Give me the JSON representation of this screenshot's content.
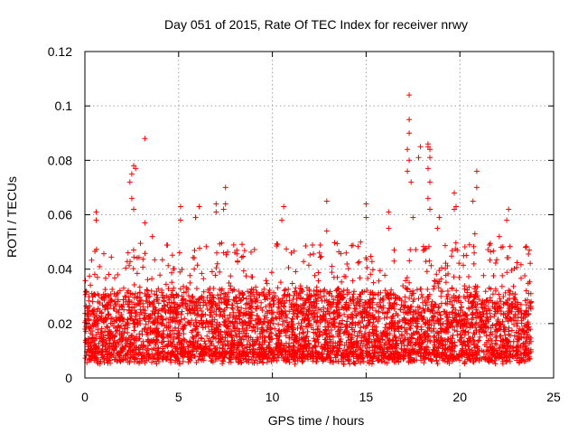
{
  "chart_data": {
    "type": "scatter",
    "title": "Day 051 of 2015, Rate Of TEC Index for receiver nrwy",
    "xlabel": "GPS time / hours",
    "ylabel": "ROTI / TECUs",
    "xlim": [
      0,
      25
    ],
    "ylim": [
      0,
      0.12
    ],
    "xticks": [
      "0",
      "5",
      "10",
      "15",
      "20",
      "25"
    ],
    "yticks": [
      "0",
      "0.02",
      "0.04",
      "0.06",
      "0.08",
      "0.1",
      "0.12"
    ],
    "grid": true,
    "marker": "+",
    "color": "#ff0000",
    "data_x_range": [
      0,
      23.8
    ],
    "typical_band": [
      0.005,
      0.03
    ],
    "outliers": [
      {
        "x": 0.6,
        "y": 0.061
      },
      {
        "x": 0.6,
        "y": 0.058
      },
      {
        "x": 2.4,
        "y": 0.072
      },
      {
        "x": 2.5,
        "y": 0.075
      },
      {
        "x": 2.6,
        "y": 0.078
      },
      {
        "x": 2.7,
        "y": 0.077
      },
      {
        "x": 2.5,
        "y": 0.066
      },
      {
        "x": 2.6,
        "y": 0.062
      },
      {
        "x": 3.2,
        "y": 0.088
      },
      {
        "x": 3.2,
        "y": 0.057
      },
      {
        "x": 3.6,
        "y": 0.052
      },
      {
        "x": 5.1,
        "y": 0.063
      },
      {
        "x": 5.1,
        "y": 0.058
      },
      {
        "x": 5.9,
        "y": 0.059
      },
      {
        "x": 6.1,
        "y": 0.063
      },
      {
        "x": 7.0,
        "y": 0.064
      },
      {
        "x": 7.0,
        "y": 0.061
      },
      {
        "x": 7.5,
        "y": 0.07
      },
      {
        "x": 7.5,
        "y": 0.064
      },
      {
        "x": 7.4,
        "y": 0.062
      },
      {
        "x": 10.6,
        "y": 0.063
      },
      {
        "x": 10.5,
        "y": 0.058
      },
      {
        "x": 12.9,
        "y": 0.065
      },
      {
        "x": 12.9,
        "y": 0.054
      },
      {
        "x": 15.0,
        "y": 0.064
      },
      {
        "x": 15.0,
        "y": 0.059
      },
      {
        "x": 16.2,
        "y": 0.061
      },
      {
        "x": 16.2,
        "y": 0.055
      },
      {
        "x": 16.5,
        "y": 0.047
      },
      {
        "x": 17.3,
        "y": 0.104
      },
      {
        "x": 17.3,
        "y": 0.095
      },
      {
        "x": 17.3,
        "y": 0.09
      },
      {
        "x": 17.2,
        "y": 0.084
      },
      {
        "x": 17.3,
        "y": 0.08
      },
      {
        "x": 17.2,
        "y": 0.076
      },
      {
        "x": 17.4,
        "y": 0.072
      },
      {
        "x": 17.5,
        "y": 0.059
      },
      {
        "x": 17.8,
        "y": 0.081
      },
      {
        "x": 17.9,
        "y": 0.085
      },
      {
        "x": 18.3,
        "y": 0.086
      },
      {
        "x": 18.3,
        "y": 0.085
      },
      {
        "x": 18.4,
        "y": 0.084
      },
      {
        "x": 18.4,
        "y": 0.081
      },
      {
        "x": 18.3,
        "y": 0.077
      },
      {
        "x": 18.4,
        "y": 0.072
      },
      {
        "x": 18.3,
        "y": 0.066
      },
      {
        "x": 18.4,
        "y": 0.062
      },
      {
        "x": 18.9,
        "y": 0.059
      },
      {
        "x": 18.8,
        "y": 0.055
      },
      {
        "x": 19.7,
        "y": 0.068
      },
      {
        "x": 19.8,
        "y": 0.063
      },
      {
        "x": 19.7,
        "y": 0.062
      },
      {
        "x": 20.7,
        "y": 0.065
      },
      {
        "x": 20.9,
        "y": 0.076
      },
      {
        "x": 20.9,
        "y": 0.07
      },
      {
        "x": 20.8,
        "y": 0.053
      },
      {
        "x": 22.1,
        "y": 0.052
      },
      {
        "x": 22.2,
        "y": 0.048
      },
      {
        "x": 22.6,
        "y": 0.062
      },
      {
        "x": 22.5,
        "y": 0.058
      },
      {
        "x": 23.5,
        "y": 0.048
      },
      {
        "x": 23.7,
        "y": 0.047
      }
    ]
  }
}
